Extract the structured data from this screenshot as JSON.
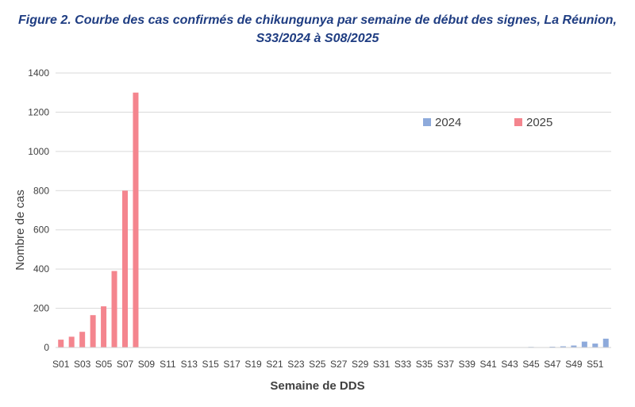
{
  "title_line1": "Figure 2. Courbe des cas confirmés de chikungunya par semaine de début des signes, La Réunion,",
  "title_line2": "S33/2024 à S08/2025",
  "chart_data": {
    "type": "bar",
    "xlabel": "Semaine de DDS",
    "ylabel": "Nombre de cas",
    "ylim": [
      0,
      1400
    ],
    "yticks": [
      0,
      200,
      400,
      600,
      800,
      1000,
      1200,
      1400
    ],
    "grid": true,
    "legend_position": "top-right",
    "categories": [
      "S01",
      "S02",
      "S03",
      "S04",
      "S05",
      "S06",
      "S07",
      "S08",
      "S09",
      "S10",
      "S11",
      "S12",
      "S13",
      "S14",
      "S15",
      "S16",
      "S17",
      "S18",
      "S19",
      "S20",
      "S21",
      "S22",
      "S23",
      "S24",
      "S25",
      "S26",
      "S27",
      "S28",
      "S29",
      "S30",
      "S31",
      "S32",
      "S33",
      "S34",
      "S35",
      "S36",
      "S37",
      "S38",
      "S39",
      "S40",
      "S41",
      "S42",
      "S43",
      "S44",
      "S45",
      "S46",
      "S47",
      "S48",
      "S49",
      "S50",
      "S51",
      "S52"
    ],
    "tick_labels": [
      "S01",
      "S03",
      "S05",
      "S07",
      "S09",
      "S11",
      "S13",
      "S15",
      "S17",
      "S19",
      "S21",
      "S23",
      "S25",
      "S27",
      "S29",
      "S31",
      "S33",
      "S35",
      "S37",
      "S39",
      "S41",
      "S43",
      "S45",
      "S47",
      "S49",
      "S51"
    ],
    "series": [
      {
        "name": "2024",
        "color": "#8eaadb",
        "values": [
          null,
          null,
          null,
          null,
          null,
          null,
          null,
          null,
          null,
          null,
          null,
          null,
          null,
          null,
          null,
          null,
          null,
          null,
          null,
          null,
          null,
          null,
          null,
          null,
          null,
          null,
          null,
          null,
          null,
          null,
          null,
          null,
          1,
          0,
          1,
          0,
          1,
          1,
          0,
          1,
          1,
          1,
          1,
          2,
          3,
          2,
          4,
          6,
          10,
          30,
          20,
          45
        ]
      },
      {
        "name": "2025",
        "color": "#f4858e",
        "values": [
          40,
          55,
          80,
          165,
          210,
          390,
          800,
          1300,
          null,
          null,
          null,
          null,
          null,
          null,
          null,
          null,
          null,
          null,
          null,
          null,
          null,
          null,
          null,
          null,
          null,
          null,
          null,
          null,
          null,
          null,
          null,
          null,
          null,
          null,
          null,
          null,
          null,
          null,
          null,
          null,
          null,
          null,
          null,
          null,
          null,
          null,
          null,
          null,
          null,
          null,
          null,
          null
        ]
      }
    ]
  }
}
